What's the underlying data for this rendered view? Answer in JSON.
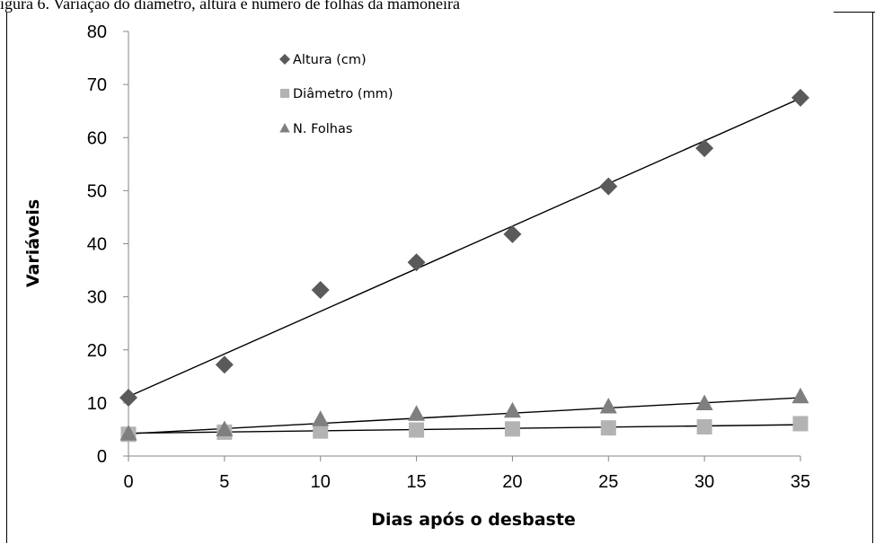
{
  "caption": "igura 6. Variação do diâmetro, altura e número de folhas da mamoneira",
  "colors": {
    "altura": "#5a5a5a",
    "diametro": "#b3b3b3",
    "folhas": "#7f7f7f",
    "trendline": "#000000",
    "axis": "#868686"
  },
  "chart_data": {
    "type": "scatter",
    "title": "",
    "xlabel": "Dias após o desbaste",
    "ylabel": "Variáveis",
    "xlim": [
      0,
      35
    ],
    "ylim": [
      0,
      80
    ],
    "x_ticks": [
      0,
      5,
      10,
      15,
      20,
      25,
      30,
      35
    ],
    "y_ticks": [
      0,
      10,
      20,
      30,
      40,
      50,
      60,
      70,
      80
    ],
    "grid": false,
    "legend_position": "top-center",
    "series": [
      {
        "name": "Altura (cm)",
        "marker": "diamond",
        "x": [
          0,
          5,
          10,
          15,
          20,
          25,
          30,
          35
        ],
        "y": [
          11.0,
          17.2,
          31.3,
          36.5,
          41.8,
          50.8,
          58.0,
          67.5
        ],
        "trendline": [
          11.2,
          67.4
        ]
      },
      {
        "name": "Diâmetro (mm)",
        "marker": "square",
        "x": [
          0,
          5,
          10,
          15,
          20,
          25,
          30,
          35
        ],
        "y": [
          4.1,
          4.5,
          4.7,
          4.9,
          5.1,
          5.3,
          5.5,
          6.1
        ],
        "trendline": [
          4.3,
          5.9
        ]
      },
      {
        "name": "N. Folhas",
        "marker": "triangle",
        "x": [
          0,
          5,
          10,
          15,
          20,
          25,
          30,
          35
        ],
        "y": [
          4.2,
          5.0,
          6.9,
          7.9,
          8.5,
          9.3,
          9.9,
          11.2
        ],
        "trendline": [
          4.2,
          11.0
        ]
      }
    ]
  }
}
